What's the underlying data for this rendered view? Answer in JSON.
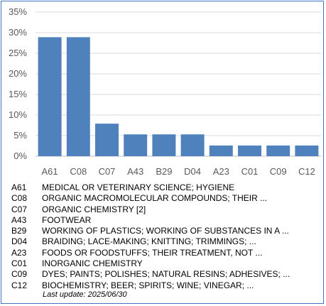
{
  "chart_data": {
    "type": "bar",
    "categories": [
      "A61",
      "C08",
      "C07",
      "A43",
      "B29",
      "D04",
      "A23",
      "C01",
      "C09",
      "C12"
    ],
    "values": [
      28.9,
      28.9,
      7.9,
      5.3,
      5.3,
      5.3,
      2.6,
      2.6,
      2.6,
      2.6
    ],
    "ylim": [
      0,
      35
    ],
    "yticks": [
      0,
      5,
      10,
      15,
      20,
      25,
      30,
      35
    ],
    "ytick_format": "percent",
    "grid": true,
    "bar_color": "#4f81bd",
    "grid_color": "#d9d9d9"
  },
  "legend": [
    {
      "code": "A61",
      "desc": "MEDICAL OR VETERINARY SCIENCE; HYGIENE"
    },
    {
      "code": "C08",
      "desc": "ORGANIC MACROMOLECULAR COMPOUNDS; THEIR ..."
    },
    {
      "code": "C07",
      "desc": "ORGANIC CHEMISTRY [2]"
    },
    {
      "code": "A43",
      "desc": "FOOTWEAR"
    },
    {
      "code": "B29",
      "desc": "WORKING OF PLASTICS; WORKING OF SUBSTANCES IN A ..."
    },
    {
      "code": "D04",
      "desc": "BRAIDING; LACE-MAKING; KNITTING; TRIMMINGS; ..."
    },
    {
      "code": "A23",
      "desc": "FOODS OR FOODSTUFFS; THEIR TREATMENT, NOT ..."
    },
    {
      "code": "C01",
      "desc": "INORGANIC CHEMISTRY"
    },
    {
      "code": "C09",
      "desc": "DYES; PAINTS; POLISHES; NATURAL RESINS; ADHESIVES; ..."
    },
    {
      "code": "C12",
      "desc": "BIOCHEMISTRY; BEER; SPIRITS; WINE; VINEGAR; ..."
    }
  ],
  "last_update": "Last update:  2025/06/30"
}
